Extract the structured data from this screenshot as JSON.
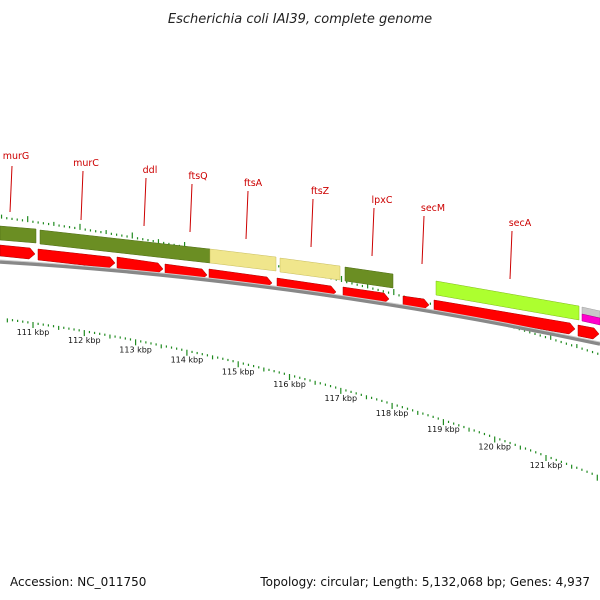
{
  "title": "Escherichia coli IAI39, complete genome",
  "accession": "Accession: NC_011750",
  "summary": "Topology: circular; Length: 5,132,068 bp; Genes: 4,937",
  "colors": {
    "gene_label": "#cc0000",
    "tick": "#1f8a1f",
    "cds": "#ff0000",
    "backbone": "#888888",
    "dark_olive": "#6b8e23",
    "khaki": "#f0e68c",
    "lime": "#adff2f",
    "magenta": "#ff00cc",
    "grey": "#c8c8c8"
  },
  "genes": [
    {
      "label": "murG",
      "kbp": 110.7
    },
    {
      "label": "murC",
      "kbp": 111.9
    },
    {
      "label": "ddl",
      "kbp": 113.2
    },
    {
      "label": "ftsQ",
      "kbp": 114.1
    },
    {
      "label": "ftsA",
      "kbp": 115.1
    },
    {
      "label": "ftsZ",
      "kbp": 116.3
    },
    {
      "label": "lpxC",
      "kbp": 117.3
    },
    {
      "label": "secM",
      "kbp": 118.2
    },
    {
      "label": "secA",
      "kbp": 119.9
    }
  ],
  "scale_labels": [
    "111 kbp",
    "112 kbp",
    "113 kbp",
    "114 kbp",
    "115 kbp",
    "116 kbp",
    "117 kbp",
    "118 kbp",
    "119 kbp",
    "120 kbp",
    "121 kbp"
  ]
}
